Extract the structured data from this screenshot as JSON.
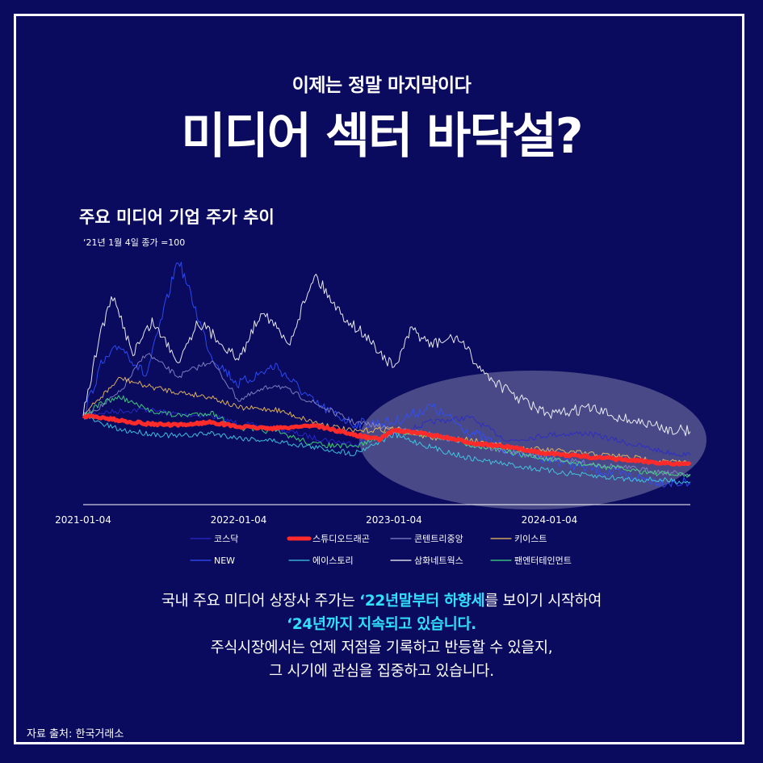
{
  "kicker": "이제는 정말 마지막이다",
  "headline": "미디어 섹터 바닥설?",
  "chart_title": "주요 미디어 기업 주가 추이",
  "chart_note": "‘21년 1월 4일 종가 =100",
  "chart_data": {
    "type": "line",
    "x_ticks": [
      "2021-01-04",
      "2022-01-04",
      "2023-01-04",
      "2024-01-04"
    ],
    "x_range": [
      "2021-01-04",
      "2024-11-30"
    ],
    "grid": false,
    "legend_position": "bottom",
    "highlight": "2023–2024 decline region (ellipse)",
    "series": [
      {
        "name": "코스닥",
        "color": "#2a2acc",
        "width": 1,
        "dates": [
          "2021-01-04",
          "2021-02-15",
          "2021-04-01",
          "2021-06-01",
          "2021-08-15",
          "2021-11-01",
          "2022-01-04",
          "2022-04-01",
          "2022-07-01",
          "2022-10-01",
          "2023-01-04",
          "2023-04-01",
          "2023-07-01",
          "2023-10-01",
          "2024-01-04",
          "2024-04-01",
          "2024-07-01",
          "2024-10-01",
          "2024-11-30"
        ],
        "values": [
          100,
          102,
          103,
          104,
          101,
          100,
          95,
          92,
          86,
          82,
          88,
          96,
          99,
          84,
          88,
          89,
          83,
          77,
          75
        ]
      },
      {
        "name": "스튜디오드래곤",
        "color": "#ff2a2a",
        "width": 5,
        "dates": [
          "2021-01-04",
          "2021-02-15",
          "2021-04-01",
          "2021-06-01",
          "2021-08-15",
          "2021-11-01",
          "2022-01-04",
          "2022-04-01",
          "2022-07-01",
          "2022-10-01",
          "2022-12-01",
          "2023-01-04",
          "2023-04-01",
          "2023-07-01",
          "2023-10-01",
          "2024-01-04",
          "2024-04-01",
          "2024-07-01",
          "2024-10-01",
          "2024-11-30"
        ],
        "values": [
          100,
          99,
          97,
          95,
          94,
          96,
          93,
          92,
          94,
          88,
          85,
          91,
          88,
          83,
          80,
          76,
          74,
          72,
          70,
          69
        ]
      },
      {
        "name": "콘텐트리중앙",
        "color": "#8888cc",
        "width": 1,
        "dates": [
          "2021-01-04",
          "2021-02-15",
          "2021-04-01",
          "2021-06-01",
          "2021-08-15",
          "2021-11-01",
          "2022-01-04",
          "2022-04-01",
          "2022-07-01",
          "2022-10-01",
          "2023-01-04",
          "2023-04-01",
          "2023-07-01",
          "2023-10-01",
          "2024-01-04",
          "2024-04-01",
          "2024-07-01",
          "2024-10-01",
          "2024-11-30"
        ],
        "values": [
          100,
          106,
          115,
          140,
          125,
          135,
          110,
          120,
          108,
          96,
          92,
          88,
          82,
          77,
          73,
          70,
          67,
          64,
          63
        ]
      },
      {
        "name": "키이스트",
        "color": "#f0c060",
        "width": 1,
        "dates": [
          "2021-01-04",
          "2021-02-15",
          "2021-04-01",
          "2021-06-01",
          "2021-08-15",
          "2021-11-01",
          "2022-01-04",
          "2022-04-01",
          "2022-07-01",
          "2022-10-01",
          "2023-01-04",
          "2023-04-01",
          "2023-07-01",
          "2023-10-01",
          "2024-01-04",
          "2024-04-01",
          "2024-07-01",
          "2024-10-01",
          "2024-11-30"
        ],
        "values": [
          100,
          112,
          124,
          119,
          115,
          112,
          105,
          104,
          96,
          90,
          92,
          86,
          85,
          80,
          78,
          76,
          74,
          71,
          70
        ]
      },
      {
        "name": "NEW",
        "color": "#3050ff",
        "width": 1,
        "dates": [
          "2021-01-04",
          "2021-02-15",
          "2021-04-01",
          "2021-06-01",
          "2021-08-15",
          "2021-11-01",
          "2022-01-04",
          "2022-04-01",
          "2022-07-01",
          "2022-10-01",
          "2023-01-04",
          "2023-04-01",
          "2023-07-01",
          "2023-10-01",
          "2024-01-04",
          "2024-04-01",
          "2024-07-01",
          "2024-10-01",
          "2024-11-30"
        ],
        "values": [
          100,
          132,
          145,
          125,
          200,
          138,
          120,
          132,
          108,
          95,
          96,
          106,
          90,
          78,
          73,
          67,
          62,
          58,
          57
        ]
      },
      {
        "name": "에이스토리",
        "color": "#40d0e8",
        "width": 1,
        "dates": [
          "2021-01-04",
          "2021-02-15",
          "2021-04-01",
          "2021-06-01",
          "2021-08-15",
          "2021-11-01",
          "2022-01-04",
          "2022-04-01",
          "2022-07-01",
          "2022-10-01",
          "2023-01-04",
          "2023-04-01",
          "2023-07-01",
          "2023-10-01",
          "2024-01-04",
          "2024-04-01",
          "2024-07-01",
          "2024-10-01",
          "2024-11-30"
        ],
        "values": [
          100,
          95,
          91,
          89,
          87,
          89,
          86,
          84,
          80,
          76,
          88,
          80,
          73,
          69,
          65,
          62,
          60,
          59,
          58
        ]
      },
      {
        "name": "삼화네트웍스",
        "color": "#ffffff",
        "width": 1,
        "dates": [
          "2021-01-04",
          "2021-02-15",
          "2021-03-15",
          "2021-05-01",
          "2021-06-15",
          "2021-08-15",
          "2021-10-01",
          "2021-12-01",
          "2022-01-04",
          "2022-03-01",
          "2022-05-01",
          "2022-07-01",
          "2022-09-01",
          "2022-11-01",
          "2023-01-04",
          "2023-02-15",
          "2023-04-01",
          "2023-06-01",
          "2023-08-01",
          "2023-10-01",
          "2024-01-04",
          "2024-04-01",
          "2024-07-01",
          "2024-10-01",
          "2024-11-30"
        ],
        "values": [
          100,
          155,
          175,
          140,
          160,
          135,
          160,
          145,
          135,
          168,
          145,
          190,
          165,
          150,
          130,
          155,
          145,
          150,
          128,
          115,
          100,
          105,
          98,
          92,
          90
        ]
      },
      {
        "name": "팬엔터테인먼트",
        "color": "#40e080",
        "width": 1,
        "dates": [
          "2021-01-04",
          "2021-02-15",
          "2021-04-01",
          "2021-06-01",
          "2021-08-15",
          "2021-11-01",
          "2022-01-04",
          "2022-04-01",
          "2022-07-01",
          "2022-10-01",
          "2023-01-04",
          "2023-04-01",
          "2023-07-01",
          "2023-10-01",
          "2024-01-04",
          "2024-04-01",
          "2024-07-01",
          "2024-10-01",
          "2024-11-30"
        ],
        "values": [
          100,
          108,
          112,
          104,
          100,
          102,
          92,
          90,
          82,
          80,
          90,
          88,
          82,
          77,
          72,
          69,
          66,
          63,
          62
        ]
      }
    ]
  },
  "body": {
    "line1_a": "국내 주요 미디어 상장사 주가는 ",
    "line1_hl": "‘22년말부터 하향세",
    "line1_b": "를 보이기 시작하여",
    "line2_hl": "‘24년까지 지속되고 있습니다.",
    "line3": "주식시장에서는 언제 저점을 기록하고 반등할 수 있을지,",
    "line4": "그 시기에 관심을 집중하고 있습니다."
  },
  "source": "자료 출처: 한국거래소"
}
